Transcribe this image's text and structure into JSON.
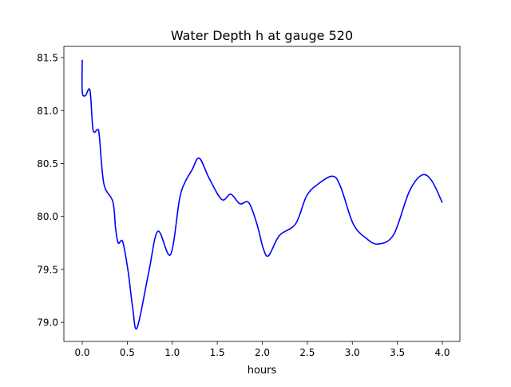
{
  "chart_data": {
    "type": "line",
    "title": "Water Depth h at gauge 520",
    "xlabel": "hours",
    "ylabel": "",
    "xlim": [
      -0.204,
      4.195
    ],
    "ylim": [
      78.82,
      81.606
    ],
    "grid": false,
    "x_ticks": [
      0.0,
      0.5,
      1.0,
      1.5,
      2.0,
      2.5,
      3.0,
      3.5,
      4.0
    ],
    "x_tick_labels": [
      "0.0",
      "0.5",
      "1.0",
      "1.5",
      "2.0",
      "2.5",
      "3.0",
      "3.5",
      "4.0"
    ],
    "y_ticks": [
      79.0,
      79.5,
      80.0,
      80.5,
      81.0,
      81.5
    ],
    "y_tick_labels": [
      "79.0",
      "79.5",
      "80.0",
      "80.5",
      "81.0",
      "81.5"
    ],
    "series": [
      {
        "name": "h",
        "color": "#0000ff",
        "x": [
          0.0,
          0.0,
          0.035,
          0.086,
          0.12,
          0.17,
          0.19,
          0.24,
          0.34,
          0.37,
          0.4,
          0.45,
          0.51,
          0.56,
          0.61,
          0.74,
          0.84,
          0.98,
          1.08,
          1.14,
          1.22,
          1.3,
          1.41,
          1.55,
          1.65,
          1.75,
          1.85,
          1.94,
          2.01,
          2.07,
          2.19,
          2.37,
          2.49,
          2.61,
          2.78,
          2.87,
          3.01,
          3.16,
          3.29,
          3.46,
          3.63,
          3.77,
          3.88,
          4.0
        ],
        "y": [
          81.48,
          81.18,
          81.14,
          81.19,
          80.82,
          80.82,
          80.76,
          80.31,
          80.14,
          79.89,
          79.75,
          79.76,
          79.48,
          79.14,
          78.95,
          79.48,
          79.86,
          79.64,
          80.16,
          80.32,
          80.44,
          80.55,
          80.36,
          80.16,
          80.21,
          80.12,
          80.13,
          79.93,
          79.7,
          79.63,
          79.82,
          79.93,
          80.19,
          80.3,
          80.38,
          80.28,
          79.93,
          79.79,
          79.74,
          79.83,
          80.23,
          80.39,
          80.34,
          80.13
        ]
      }
    ]
  }
}
